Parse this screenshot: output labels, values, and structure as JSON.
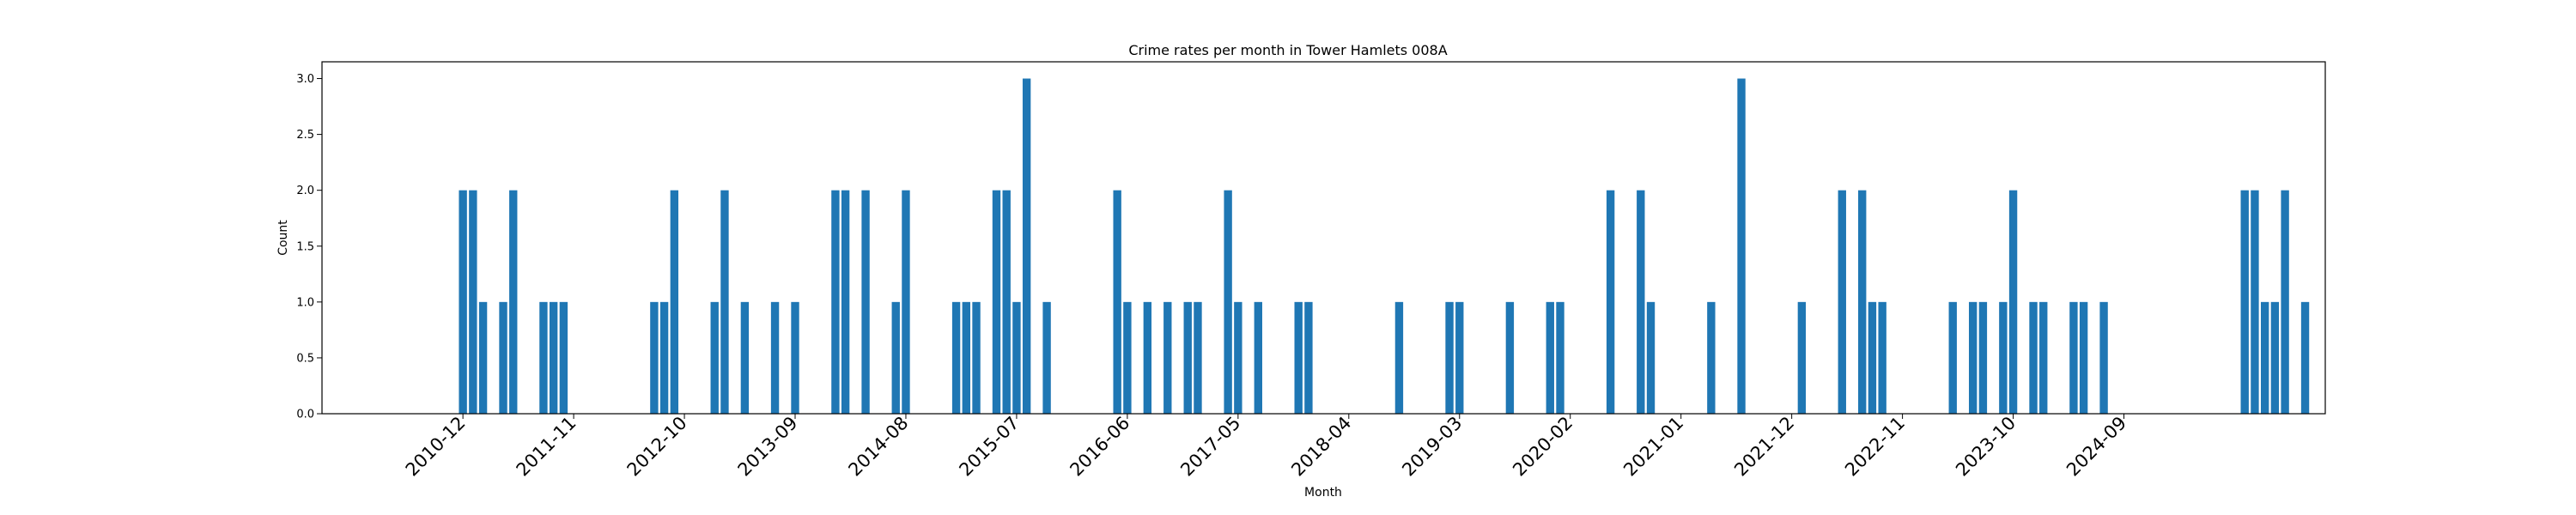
{
  "chart_data": {
    "type": "bar",
    "title": "Crime rates per month in Tower Hamlets 008A",
    "xlabel": "Month",
    "ylabel": "Count",
    "ylim": [
      0,
      3.15
    ],
    "yticks": [
      "0.0",
      "0.5",
      "1.0",
      "1.5",
      "2.0",
      "2.5",
      "3.0"
    ],
    "ytick_values": [
      0,
      0.5,
      1.0,
      1.5,
      2.0,
      2.5,
      3.0
    ],
    "xlim": [
      "2009-10",
      "2026-05"
    ],
    "xticks": [
      "2010-12",
      "2011-11",
      "2012-10",
      "2013-09",
      "2014-08",
      "2015-07",
      "2016-06",
      "2017-05",
      "2018-04",
      "2019-03",
      "2020-02",
      "2021-01",
      "2021-12",
      "2022-11",
      "2023-10",
      "2024-09"
    ],
    "bar_color": "#1f77b4",
    "grid": false,
    "categories": [
      "2010-12",
      "2011-01",
      "2011-02",
      "2011-04",
      "2011-05",
      "2011-08",
      "2011-09",
      "2011-10",
      "2012-07",
      "2012-08",
      "2012-09",
      "2013-01",
      "2013-02",
      "2013-04",
      "2013-07",
      "2013-09",
      "2014-01",
      "2014-02",
      "2014-04",
      "2014-07",
      "2014-08",
      "2015-01",
      "2015-02",
      "2015-03",
      "2015-05",
      "2015-06",
      "2015-07",
      "2015-08",
      "2015-10",
      "2016-05",
      "2016-06",
      "2016-08",
      "2016-10",
      "2016-12",
      "2017-01",
      "2017-04",
      "2017-05",
      "2017-07",
      "2017-11",
      "2017-12",
      "2018-09",
      "2019-02",
      "2019-03",
      "2019-08",
      "2019-12",
      "2020-01",
      "2020-06",
      "2020-09",
      "2020-10",
      "2021-04",
      "2021-07",
      "2022-01",
      "2022-05",
      "2022-07",
      "2022-08",
      "2022-09",
      "2023-04",
      "2023-06",
      "2023-07",
      "2023-09",
      "2023-10",
      "2023-12",
      "2024-01",
      "2024-04",
      "2024-05",
      "2024-07",
      "2025-09",
      "2025-10",
      "2025-11",
      "2025-12",
      "2026-01",
      "2026-03"
    ],
    "values": [
      2,
      2,
      1,
      1,
      2,
      1,
      1,
      1,
      1,
      1,
      2,
      1,
      2,
      1,
      1,
      1,
      2,
      2,
      2,
      1,
      2,
      1,
      1,
      1,
      2,
      2,
      1,
      3,
      1,
      2,
      1,
      1,
      1,
      1,
      1,
      2,
      1,
      1,
      1,
      1,
      1,
      1,
      1,
      1,
      1,
      1,
      2,
      2,
      1,
      1,
      3,
      1,
      2,
      2,
      1,
      1,
      1,
      1,
      1,
      1,
      2,
      1,
      1,
      1,
      1,
      1,
      2,
      2,
      1,
      1,
      2,
      1
    ]
  }
}
